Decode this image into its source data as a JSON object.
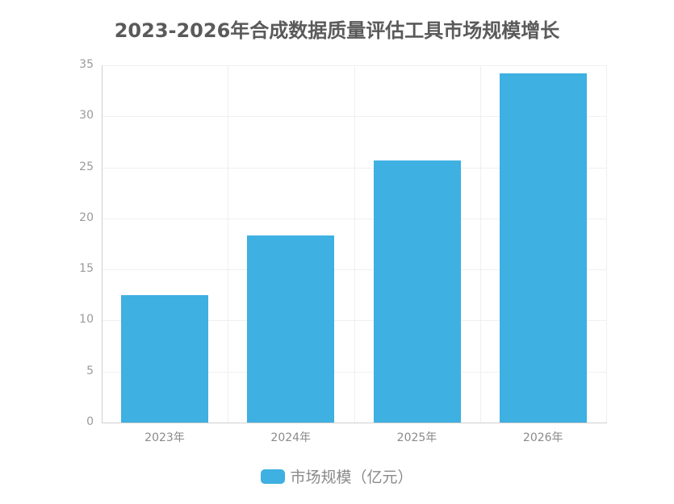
{
  "title": "2023-2026年合成数据质量评估工具市场规模增长",
  "chart_data": {
    "type": "bar",
    "title": "2023-2026年合成数据质量评估工具市场规模增长",
    "categories": [
      "2023年",
      "2024年",
      "2025年",
      "2026年"
    ],
    "series": [
      {
        "name": "市场规模（亿元）",
        "values": [
          12.5,
          18.3,
          25.7,
          34.2
        ],
        "color": "#3eb0e1"
      }
    ],
    "xlabel": "",
    "ylabel": "",
    "ylim": [
      0,
      35
    ],
    "yticks": [
      0,
      5,
      10,
      15,
      20,
      25,
      30,
      35
    ],
    "grid": true,
    "legend_position": "bottom"
  },
  "axis": {
    "yticks": [
      "0",
      "5",
      "10",
      "15",
      "20",
      "25",
      "30",
      "35"
    ],
    "xticks": [
      "2023年",
      "2024年",
      "2025年",
      "2026年"
    ]
  },
  "legend": {
    "label": "市场规模（亿元）",
    "color": "#3eb0e1"
  }
}
